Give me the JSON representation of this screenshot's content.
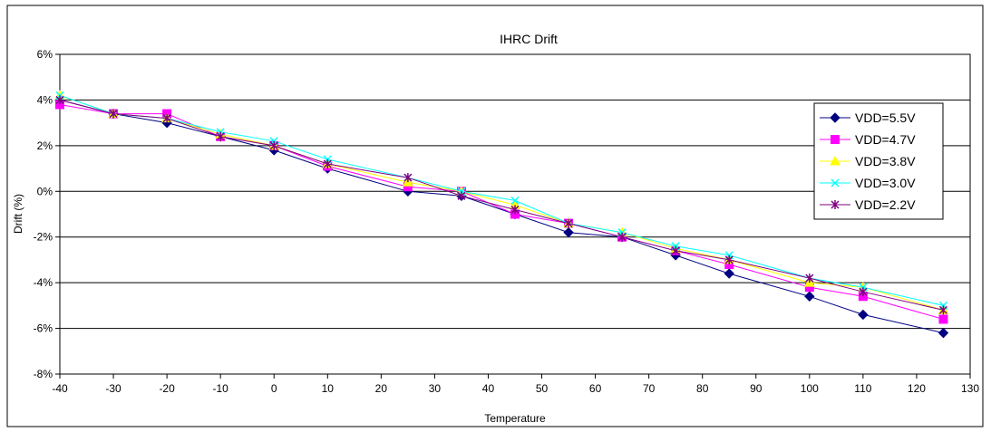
{
  "chart_data": {
    "type": "line",
    "title": "IHRC Drift",
    "xlabel": "Temperature",
    "ylabel": "Drift (%)",
    "xlim": [
      -40,
      130
    ],
    "ylim": [
      -8,
      6
    ],
    "x_ticks": [
      -40,
      -30,
      -20,
      -10,
      0,
      10,
      20,
      30,
      40,
      50,
      60,
      70,
      80,
      90,
      100,
      110,
      120,
      130
    ],
    "y_ticks": [
      6,
      4,
      2,
      0,
      -2,
      -4,
      -6,
      -8
    ],
    "y_tick_labels": [
      "6%",
      "4%",
      "2%",
      "0%",
      "-2%",
      "-4%",
      "-6%",
      "-8%"
    ],
    "grid": "horizontal",
    "legend_position": "right",
    "x": [
      -40,
      -30,
      -20,
      -10,
      0,
      10,
      25,
      35,
      45,
      55,
      65,
      75,
      85,
      100,
      110,
      125
    ],
    "series": [
      {
        "name": "VDD=5.5V",
        "color": "#000080",
        "marker": "diamond",
        "values": [
          4.0,
          3.4,
          3.0,
          2.4,
          1.8,
          1.0,
          0.0,
          -0.2,
          -1.0,
          -1.8,
          -2.0,
          -2.8,
          -3.6,
          -4.6,
          -5.4,
          -6.2
        ]
      },
      {
        "name": "VDD=4.7V",
        "color": "#ff00ff",
        "marker": "square",
        "values": [
          3.8,
          3.4,
          3.4,
          2.4,
          2.0,
          1.1,
          0.2,
          0.0,
          -1.0,
          -1.4,
          -2.0,
          -2.6,
          -3.2,
          -4.2,
          -4.6,
          -5.6
        ]
      },
      {
        "name": "VDD=3.8V",
        "color": "#ffff00",
        "marker": "triangle",
        "values": [
          4.2,
          3.4,
          3.2,
          2.5,
          2.0,
          1.2,
          0.4,
          0.0,
          -0.6,
          -1.4,
          -1.8,
          -2.5,
          -3.0,
          -4.0,
          -4.2,
          -5.2
        ]
      },
      {
        "name": "VDD=3.0V",
        "color": "#00ffff",
        "marker": "x",
        "values": [
          4.2,
          3.4,
          3.2,
          2.6,
          2.2,
          1.4,
          0.6,
          0.0,
          -0.4,
          -1.4,
          -1.8,
          -2.4,
          -2.8,
          -3.8,
          -4.2,
          -5.0
        ]
      },
      {
        "name": "VDD=2.2V",
        "color": "#800080",
        "marker": "star",
        "values": [
          4.0,
          3.4,
          3.2,
          2.4,
          2.0,
          1.2,
          0.6,
          -0.2,
          -0.8,
          -1.4,
          -2.0,
          -2.6,
          -3.0,
          -3.8,
          -4.4,
          -5.2
        ]
      }
    ]
  }
}
